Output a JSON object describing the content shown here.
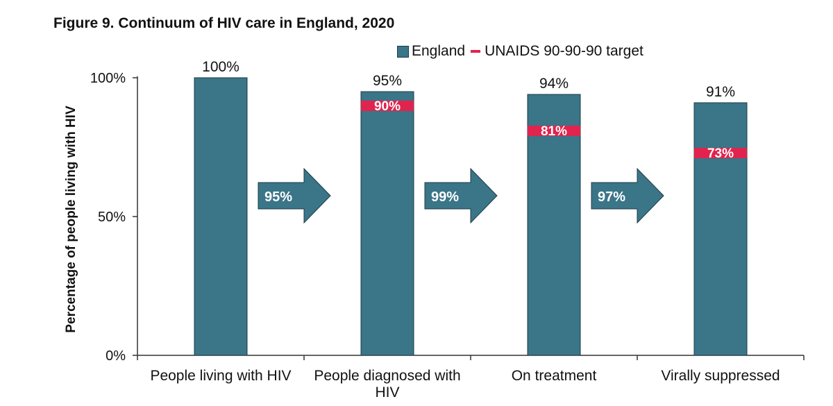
{
  "chart_data": {
    "type": "bar",
    "title": "Figure 9. Continuum of HIV care in England, 2020",
    "ylabel": "Percentage of people living with HIV",
    "xlabel": "",
    "ylim": [
      0,
      100
    ],
    "yticks": [
      0,
      50,
      100
    ],
    "ytick_labels": [
      "0%",
      "50%",
      "100%"
    ],
    "categories": [
      "People living with HIV",
      "People diagnosed with HIV",
      "On treatment",
      "Virally suppressed"
    ],
    "series": [
      {
        "name": "England",
        "color": "#3a7588",
        "values": [
          100,
          95,
          94,
          91
        ],
        "labels": [
          "100%",
          "95%",
          "94%",
          "91%"
        ]
      },
      {
        "name": "UNAIDS 90-90-90 target",
        "color": "#e0244d",
        "values": [
          null,
          90,
          81,
          73
        ],
        "labels": [
          "",
          "90%",
          "81%",
          "73%"
        ]
      }
    ],
    "step_arrows": [
      {
        "value": 95,
        "label": "95%"
      },
      {
        "value": 99,
        "label": "99%"
      },
      {
        "value": 97,
        "label": "97%"
      }
    ],
    "legend_position": "top"
  }
}
